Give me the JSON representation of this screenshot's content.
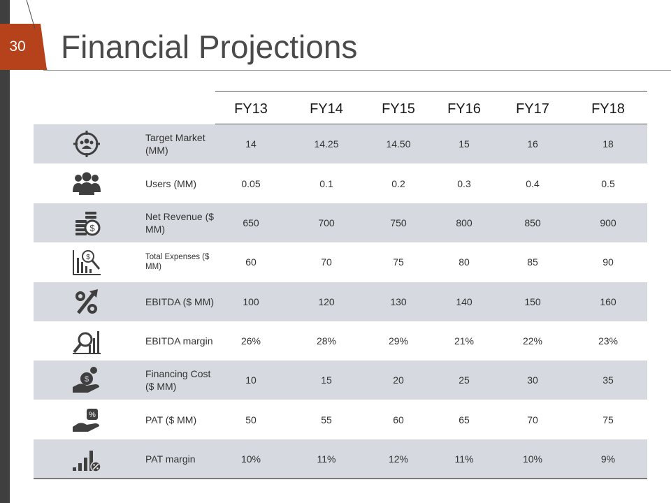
{
  "slide": {
    "number": "30",
    "title": "Financial Projections"
  },
  "colors": {
    "accent": "#b5421a",
    "row_shade": "#d6d9df",
    "icon": "#3f3f3f",
    "sidebar": "#3f3f3f"
  },
  "table": {
    "years": [
      "FY13",
      "FY14",
      "FY15",
      "FY16",
      "FY17",
      "FY18"
    ],
    "rows": [
      {
        "icon": "target-audience-icon",
        "label": "Target Market (MM)",
        "values": [
          "14",
          "14.25",
          "14.50",
          "15",
          "16",
          "18"
        ]
      },
      {
        "icon": "users-group-icon",
        "label": "Users (MM)",
        "values": [
          "0.05",
          "0.1",
          "0.2",
          "0.3",
          "0.4",
          "0.5"
        ]
      },
      {
        "icon": "coins-dollar-icon",
        "label": "Net Revenue ($ MM)",
        "values": [
          "650",
          "700",
          "750",
          "800",
          "850",
          "900"
        ]
      },
      {
        "icon": "chart-search-dollar-icon",
        "label": "Total Expenses ($ MM)",
        "values": [
          "60",
          "70",
          "75",
          "80",
          "85",
          "90"
        ]
      },
      {
        "icon": "percent-arrow-icon",
        "label": "EBITDA ($ MM)",
        "values": [
          "100",
          "120",
          "130",
          "140",
          "150",
          "160"
        ]
      },
      {
        "icon": "magnifier-bars-icon",
        "label": "EBITDA margin",
        "values": [
          "26%",
          "28%",
          "29%",
          "21%",
          "22%",
          "23%"
        ]
      },
      {
        "icon": "hand-money-bag-icon",
        "label": "Financing Cost ($ MM)",
        "values": [
          "10",
          "15",
          "20",
          "25",
          "30",
          "35"
        ]
      },
      {
        "icon": "hand-percent-icon",
        "label": "PAT ($ MM)",
        "values": [
          "50",
          "55",
          "60",
          "65",
          "70",
          "75"
        ]
      },
      {
        "icon": "bars-percent-icon",
        "label": "PAT margin",
        "values": [
          "10%",
          "11%",
          "12%",
          "11%",
          "10%",
          "9%"
        ]
      }
    ]
  }
}
